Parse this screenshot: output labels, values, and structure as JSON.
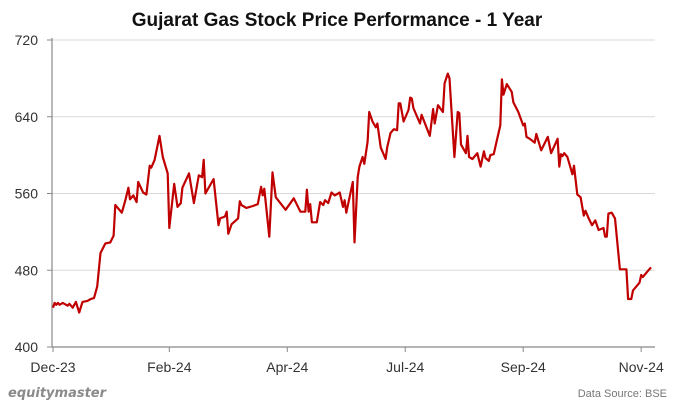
{
  "chart_data": {
    "type": "line",
    "title": "Gujarat Gas Stock Price Performance - 1 Year",
    "xlabel": "",
    "ylabel": "",
    "ylim": [
      400,
      720
    ],
    "yticks": [
      400,
      480,
      560,
      640,
      720
    ],
    "xlim": [
      "2023-11-24",
      "2024-11-23"
    ],
    "xticks": [
      {
        "date": "2023-11-24",
        "label": "Dec-23"
      },
      {
        "date": "2024-02-03",
        "label": "Feb-24"
      },
      {
        "date": "2024-04-15",
        "label": "Apr-24"
      },
      {
        "date": "2024-06-26",
        "label": "Jul-24"
      },
      {
        "date": "2024-09-06",
        "label": "Sep-24"
      },
      {
        "date": "2024-11-17",
        "label": "Nov-24"
      }
    ],
    "grid": "horizontal",
    "legend": "none",
    "line_color": "#c00000",
    "series": [
      {
        "points": [
          [
            "2023-11-24",
            441
          ],
          [
            "2023-11-25",
            446
          ],
          [
            "2023-11-26",
            444
          ],
          [
            "2023-11-27",
            446
          ],
          [
            "2023-11-28",
            444
          ],
          [
            "2023-11-30",
            446
          ],
          [
            "2023-12-03",
            443
          ],
          [
            "2023-12-04",
            445
          ],
          [
            "2023-12-06",
            441
          ],
          [
            "2023-12-08",
            447
          ],
          [
            "2023-12-10",
            436
          ],
          [
            "2023-12-12",
            447
          ],
          [
            "2023-12-15",
            448
          ],
          [
            "2023-12-17",
            450
          ],
          [
            "2023-12-19",
            451
          ],
          [
            "2023-12-21",
            463
          ],
          [
            "2023-12-23",
            498
          ],
          [
            "2023-12-26",
            508
          ],
          [
            "2023-12-29",
            509
          ],
          [
            "2023-12-31",
            516
          ],
          [
            "2024-01-01",
            548
          ],
          [
            "2024-01-05",
            540
          ],
          [
            "2024-01-07",
            552
          ],
          [
            "2024-01-09",
            566
          ],
          [
            "2024-01-10",
            554
          ],
          [
            "2024-01-12",
            558
          ],
          [
            "2024-01-14",
            551
          ],
          [
            "2024-01-15",
            572
          ],
          [
            "2024-01-18",
            561
          ],
          [
            "2024-01-20",
            559
          ],
          [
            "2024-01-22",
            589
          ],
          [
            "2024-01-23",
            587
          ],
          [
            "2024-01-25",
            595
          ],
          [
            "2024-01-28",
            620
          ],
          [
            "2024-01-30",
            598
          ],
          [
            "2024-02-02",
            581
          ],
          [
            "2024-02-03",
            524
          ],
          [
            "2024-02-06",
            570
          ],
          [
            "2024-02-08",
            546
          ],
          [
            "2024-02-10",
            550
          ],
          [
            "2024-02-11",
            566
          ],
          [
            "2024-02-15",
            581
          ],
          [
            "2024-02-18",
            550
          ],
          [
            "2024-02-21",
            579
          ],
          [
            "2024-02-23",
            577
          ],
          [
            "2024-02-24",
            595
          ],
          [
            "2024-02-25",
            560
          ],
          [
            "2024-03-01",
            575
          ],
          [
            "2024-03-04",
            527
          ],
          [
            "2024-03-05",
            534
          ],
          [
            "2024-03-08",
            536
          ],
          [
            "2024-03-09",
            541
          ],
          [
            "2024-03-10",
            518
          ],
          [
            "2024-03-12",
            528
          ],
          [
            "2024-03-16",
            534
          ],
          [
            "2024-03-17",
            552
          ],
          [
            "2024-03-18",
            548
          ],
          [
            "2024-03-21",
            545
          ],
          [
            "2024-03-25",
            547
          ],
          [
            "2024-03-28",
            549
          ],
          [
            "2024-03-30",
            567
          ],
          [
            "2024-03-31",
            558
          ],
          [
            "2024-04-01",
            565
          ],
          [
            "2024-04-04",
            515
          ],
          [
            "2024-04-06",
            582
          ],
          [
            "2024-04-08",
            556
          ],
          [
            "2024-04-14",
            543
          ],
          [
            "2024-04-19",
            555
          ],
          [
            "2024-04-23",
            541
          ],
          [
            "2024-04-26",
            541
          ],
          [
            "2024-04-27",
            564
          ],
          [
            "2024-04-28",
            541
          ],
          [
            "2024-04-29",
            549
          ],
          [
            "2024-04-30",
            530
          ],
          [
            "2024-05-03",
            530
          ],
          [
            "2024-05-05",
            551
          ],
          [
            "2024-05-07",
            548
          ],
          [
            "2024-05-08",
            553
          ],
          [
            "2024-05-10",
            550
          ],
          [
            "2024-05-12",
            561
          ],
          [
            "2024-05-14",
            558
          ],
          [
            "2024-05-17",
            561
          ],
          [
            "2024-05-19",
            546
          ],
          [
            "2024-05-20",
            553
          ],
          [
            "2024-05-21",
            540
          ],
          [
            "2024-05-25",
            572
          ],
          [
            "2024-05-26",
            509
          ],
          [
            "2024-05-28",
            577
          ],
          [
            "2024-05-29",
            588
          ],
          [
            "2024-05-31",
            598
          ],
          [
            "2024-06-01",
            591
          ],
          [
            "2024-06-03",
            614
          ],
          [
            "2024-06-04",
            645
          ],
          [
            "2024-06-06",
            635
          ],
          [
            "2024-06-08",
            629
          ],
          [
            "2024-06-09",
            633
          ],
          [
            "2024-06-11",
            608
          ],
          [
            "2024-06-14",
            596
          ],
          [
            "2024-06-15",
            608
          ],
          [
            "2024-06-17",
            623
          ],
          [
            "2024-06-19",
            627
          ],
          [
            "2024-06-21",
            626
          ],
          [
            "2024-06-22",
            654
          ],
          [
            "2024-06-23",
            654
          ],
          [
            "2024-06-25",
            635
          ],
          [
            "2024-06-28",
            647
          ],
          [
            "2024-06-29",
            660
          ],
          [
            "2024-06-30",
            659
          ],
          [
            "2024-07-01",
            649
          ],
          [
            "2024-07-05",
            633
          ],
          [
            "2024-07-06",
            642
          ],
          [
            "2024-07-11",
            620
          ],
          [
            "2024-07-13",
            648
          ],
          [
            "2024-07-14",
            633
          ],
          [
            "2024-07-16",
            652
          ],
          [
            "2024-07-19",
            645
          ],
          [
            "2024-07-20",
            675
          ],
          [
            "2024-07-22",
            685
          ],
          [
            "2024-07-23",
            680
          ],
          [
            "2024-07-26",
            598
          ],
          [
            "2024-07-28",
            645
          ],
          [
            "2024-07-29",
            644
          ],
          [
            "2024-07-30",
            611
          ],
          [
            "2024-08-02",
            602
          ],
          [
            "2024-08-03",
            620
          ],
          [
            "2024-08-04",
            598
          ],
          [
            "2024-08-06",
            596
          ],
          [
            "2024-08-09",
            602
          ],
          [
            "2024-08-11",
            588
          ],
          [
            "2024-08-13",
            604
          ],
          [
            "2024-08-14",
            597
          ],
          [
            "2024-08-16",
            594
          ],
          [
            "2024-08-17",
            600
          ],
          [
            "2024-08-19",
            601
          ],
          [
            "2024-08-21",
            616
          ],
          [
            "2024-08-23",
            631
          ],
          [
            "2024-08-24",
            679
          ],
          [
            "2024-08-25",
            663
          ],
          [
            "2024-08-27",
            674
          ],
          [
            "2024-08-30",
            666
          ],
          [
            "2024-08-31",
            655
          ],
          [
            "2024-09-03",
            645
          ],
          [
            "2024-09-06",
            631
          ],
          [
            "2024-09-07",
            633
          ],
          [
            "2024-09-08",
            619
          ],
          [
            "2024-09-10",
            617
          ],
          [
            "2024-09-13",
            613
          ],
          [
            "2024-09-14",
            622
          ],
          [
            "2024-09-17",
            605
          ],
          [
            "2024-09-21",
            619
          ],
          [
            "2024-09-23",
            602
          ],
          [
            "2024-09-27",
            617
          ],
          [
            "2024-09-28",
            588
          ],
          [
            "2024-09-29",
            601
          ],
          [
            "2024-09-30",
            599
          ],
          [
            "2024-10-01",
            602
          ],
          [
            "2024-10-03",
            598
          ],
          [
            "2024-10-06",
            580
          ],
          [
            "2024-10-07",
            589
          ],
          [
            "2024-10-09",
            559
          ],
          [
            "2024-10-11",
            556
          ],
          [
            "2024-10-13",
            537
          ],
          [
            "2024-10-14",
            542
          ],
          [
            "2024-10-16",
            534
          ],
          [
            "2024-10-18",
            527
          ],
          [
            "2024-10-20",
            532
          ],
          [
            "2024-10-22",
            522
          ],
          [
            "2024-10-25",
            524
          ],
          [
            "2024-10-26",
            515
          ],
          [
            "2024-10-27",
            515
          ],
          [
            "2024-10-28",
            539
          ],
          [
            "2024-10-30",
            540
          ],
          [
            "2024-11-01",
            534
          ],
          [
            "2024-11-04",
            481
          ],
          [
            "2024-11-08",
            481
          ],
          [
            "2024-11-09",
            450
          ],
          [
            "2024-11-11",
            450
          ],
          [
            "2024-11-12",
            459
          ],
          [
            "2024-11-16",
            467
          ],
          [
            "2024-11-17",
            475
          ],
          [
            "2024-11-18",
            473
          ],
          [
            "2024-11-21",
            479
          ],
          [
            "2024-11-23",
            483
          ]
        ]
      }
    ]
  },
  "footer": {
    "brand": "equitymaster",
    "source": "Data Source: BSE"
  }
}
